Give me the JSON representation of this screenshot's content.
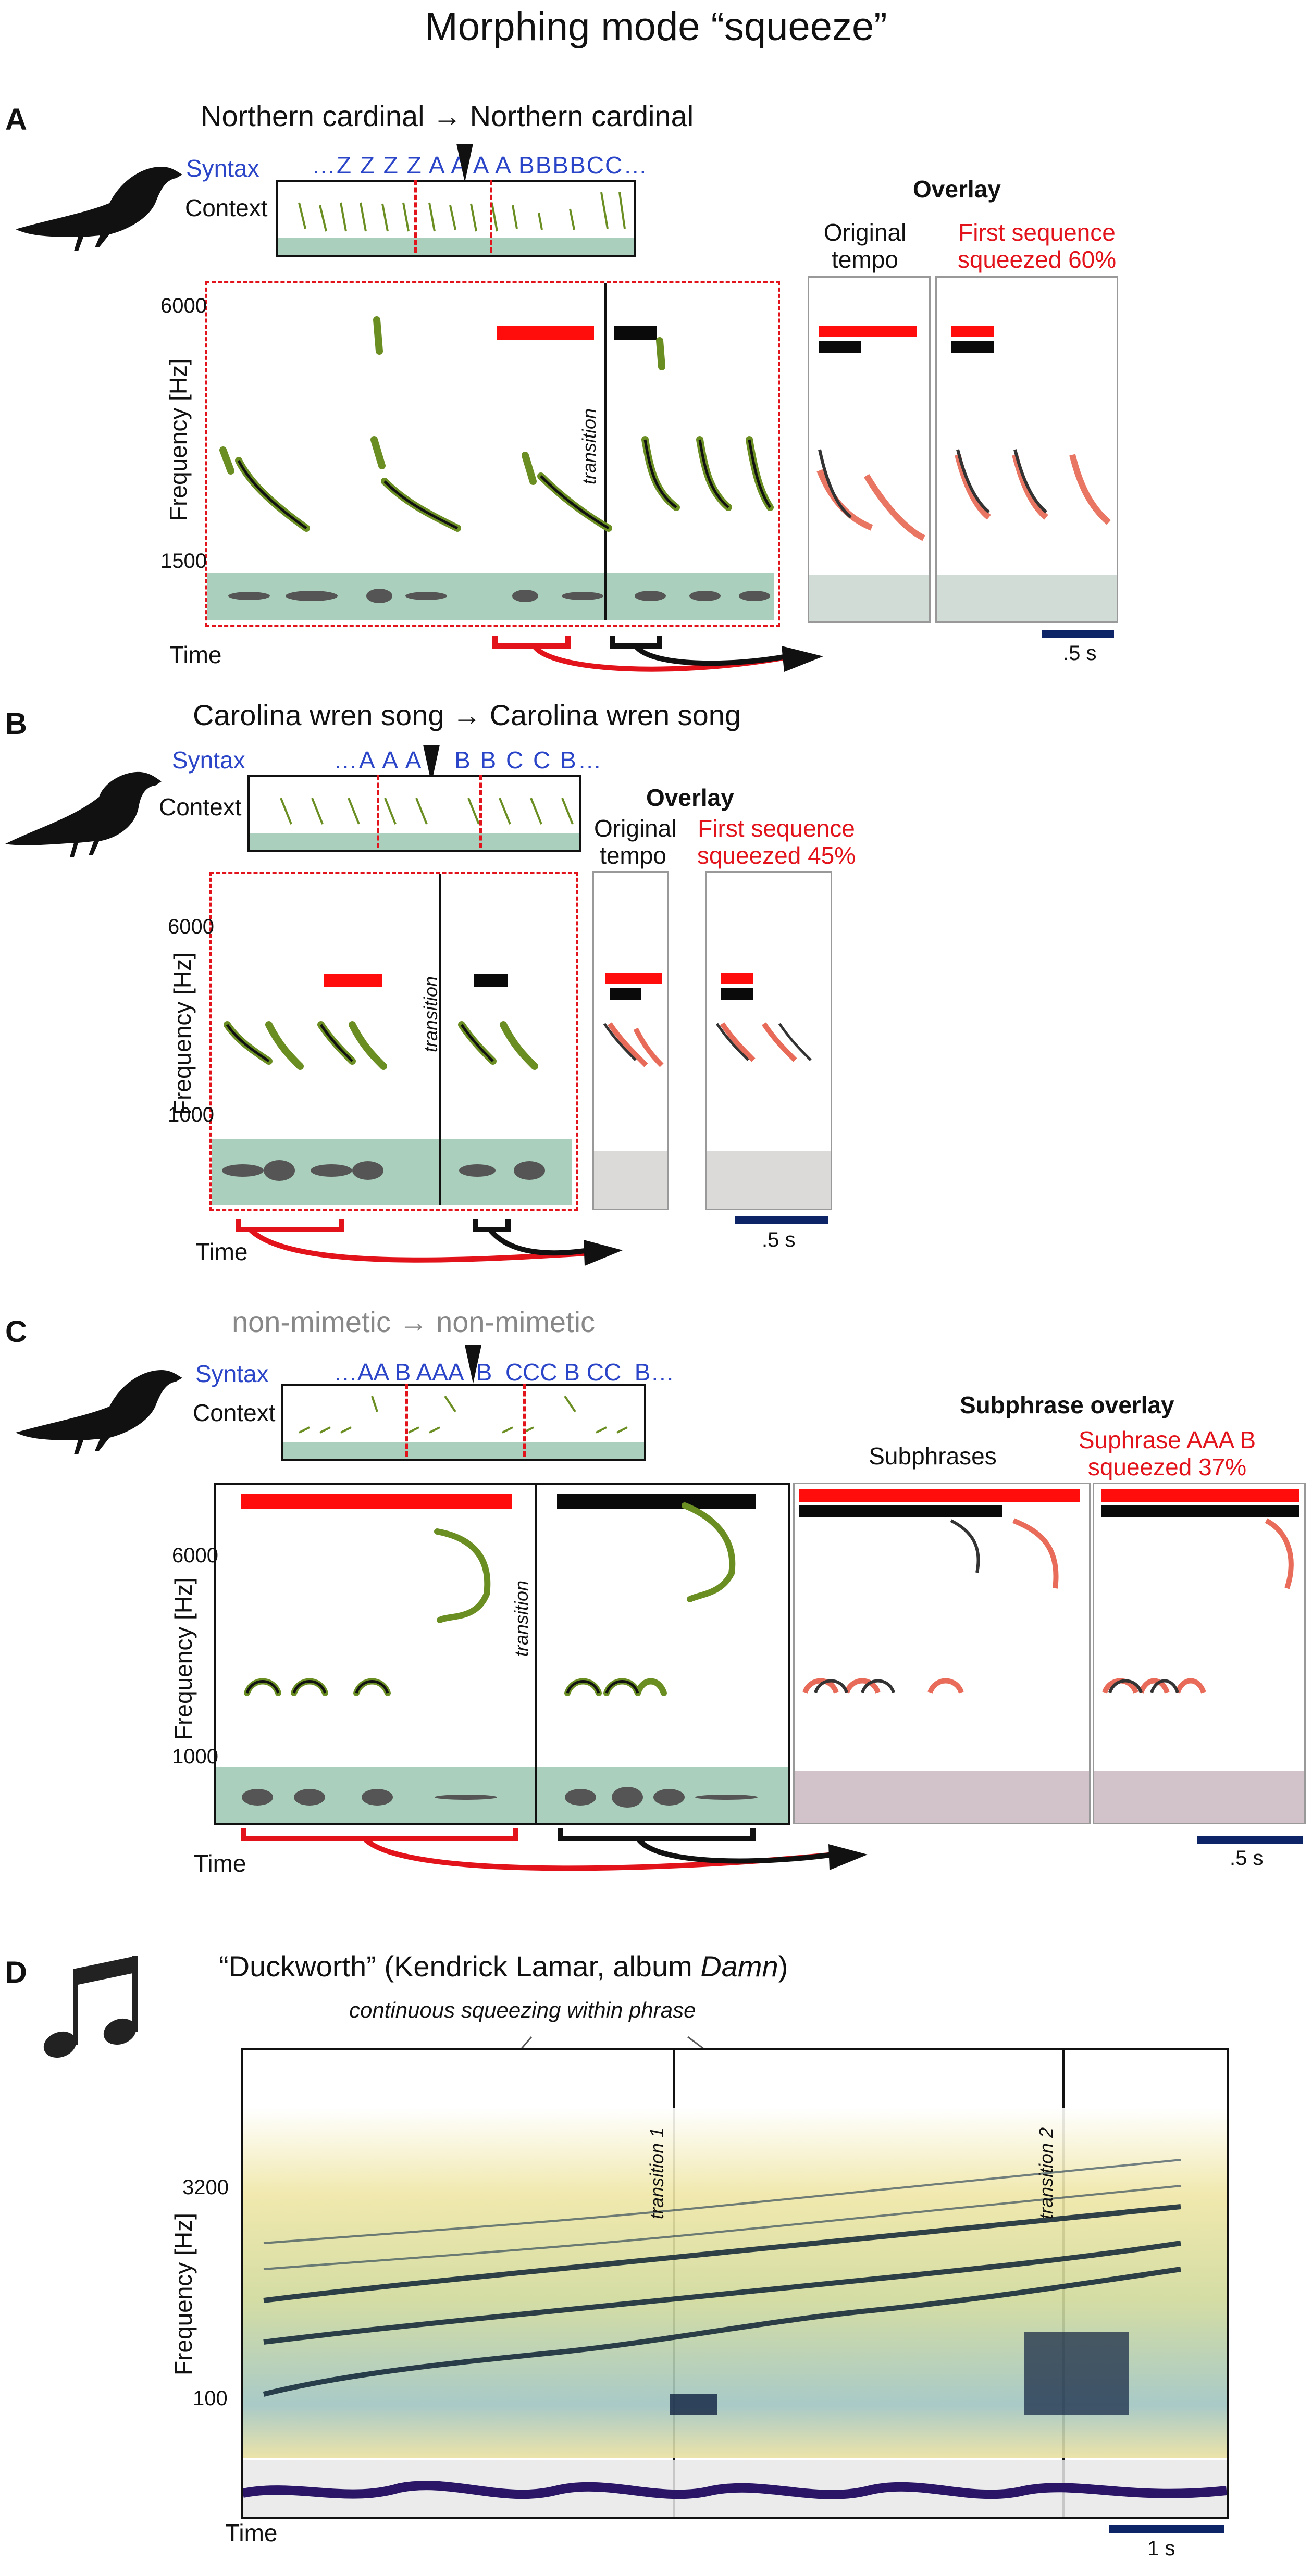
{
  "figure_title": "Morphing mode “squeeze”",
  "panelA": {
    "letter": "A",
    "heading": "Northern cardinal → Northern cardinal",
    "syntax_label": "Syntax",
    "syntax_seq": "…Z Z Z Z A A A A BBBBCC…",
    "context_label": "Context",
    "overlay_title": "Overlay",
    "col1": "Original tempo",
    "col2": "First sequence squeezed 60%",
    "ylabel": "Frequency [Hz]",
    "ytick_top": "6000",
    "ytick_bottom": "1500",
    "transition": "transition",
    "xlabel": "Time",
    "scale": ".5 s"
  },
  "panelB": {
    "letter": "B",
    "heading": "Carolina wren song → Carolina wren song",
    "syntax_label": "Syntax",
    "syntax_seq": "…A A A    B B C C B…",
    "context_label": "Context",
    "overlay_title": "Overlay",
    "col1": "Original tempo",
    "col2": "First sequence squeezed 45%",
    "ylabel": "Frequency [Hz]",
    "ytick_top": "6000",
    "ytick_bottom": "1000",
    "transition": "transition",
    "xlabel": "Time",
    "scale": ".5 s"
  },
  "panelC": {
    "letter": "C",
    "heading": "non-mimetic → non-mimetic",
    "syntax_label": "Syntax",
    "syntax_seq": "…AA B AAA  B  CCC B CC  B…",
    "context_label": "Context",
    "overlay_title": "Subphrase overlay",
    "col1": "Subphrases",
    "col2": "Suphrase AAA B squeezed 37%",
    "ylabel": "Frequency [Hz]",
    "ytick_top": "6000",
    "ytick_bottom": "1000",
    "transition": "transition",
    "xlabel": "Time",
    "scale": ".5 s"
  },
  "panelD": {
    "letter": "D",
    "heading_pre": "“Duckworth” (Kendrick Lamar, album ",
    "heading_album": "Damn",
    "heading_post": ")",
    "annotation": "continuous squeezing within phrase",
    "transition1": "transition 1",
    "transition2": "transition 2",
    "ylabel": "Frequency [Hz]",
    "ytick_top": "3200",
    "ytick_bottom": "100",
    "xlabel": "Time",
    "scale": "1 s"
  },
  "icons": {
    "bird": "bird-silhouette-icon",
    "music": "music-note-icon",
    "marker": "transition-marker-icon"
  },
  "colors": {
    "red": "#ff0d0d",
    "blue": "#2b45c8",
    "waveform_bg": "#9bc7b1",
    "scalebar": "#0d2566",
    "spectrogram_green": "#6b8e23",
    "overlay_red": "#e2472f"
  }
}
